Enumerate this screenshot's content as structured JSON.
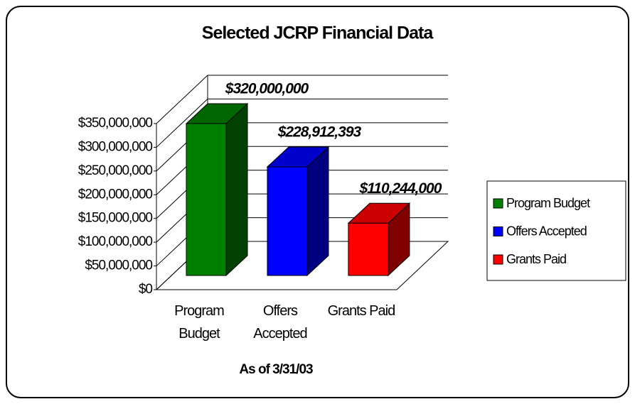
{
  "chart_data": {
    "type": "bar3d",
    "title": "Selected JCRP Financial Data",
    "x_label": "As of 3/31/03",
    "categories": [
      "Program Budget",
      "Offers Accepted",
      "Grants Paid"
    ],
    "values": [
      320000000,
      228912393,
      110244000
    ],
    "value_labels": [
      "$320,000,000",
      "$228,912,393",
      "$110,244,000"
    ],
    "colors": [
      "#008000",
      "#0000ff",
      "#ff0000"
    ],
    "ylim": [
      0,
      350000000
    ],
    "yticks": [
      {
        "value": 0,
        "label": "$0"
      },
      {
        "value": 50000000,
        "label": "$50,000,000"
      },
      {
        "value": 100000000,
        "label": "$100,000,000"
      },
      {
        "value": 150000000,
        "label": "$150,000,000"
      },
      {
        "value": 200000000,
        "label": "$200,000,000"
      },
      {
        "value": 250000000,
        "label": "$250,000,000"
      },
      {
        "value": 300000000,
        "label": "$300,000,000"
      },
      {
        "value": 350000000,
        "label": "$350,000,000"
      }
    ],
    "grid": true,
    "legend": "right"
  }
}
